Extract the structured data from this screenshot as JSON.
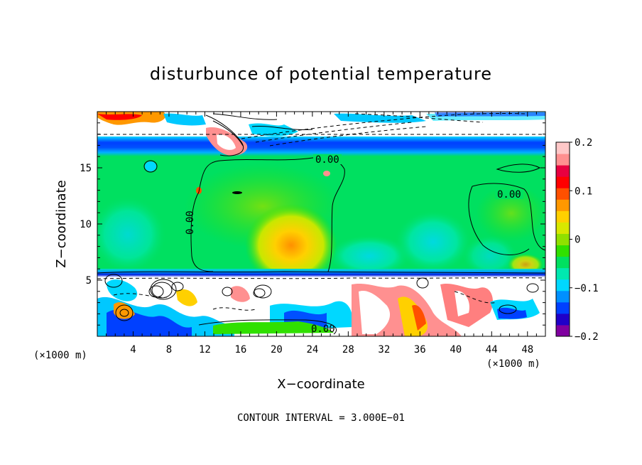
{
  "chart_data": {
    "type": "heatmap",
    "title": "disturbunce of potential temperature",
    "xlabel": "X−coordinate",
    "ylabel": "Z−coordinate",
    "x_unit": "(×1000 m)",
    "y_unit": "(×1000 m)",
    "xlim": [
      0,
      50
    ],
    "ylim": [
      0,
      20
    ],
    "x_ticks": [
      4,
      8,
      12,
      16,
      20,
      24,
      28,
      32,
      36,
      40,
      44,
      48
    ],
    "y_ticks": [
      5,
      10,
      15
    ],
    "colorbar": {
      "range": [
        -0.2,
        0.2
      ],
      "tick_values": [
        0.2,
        0.1,
        0,
        -0.1,
        -0.2
      ],
      "tick_labels": [
        "0.2",
        "0.1",
        "0",
        "−0.1",
        "−0.2"
      ],
      "colors": [
        "#8000a0",
        "#2000c8",
        "#0040ff",
        "#0090ff",
        "#00d8ff",
        "#00e8b0",
        "#00e060",
        "#30e000",
        "#90e000",
        "#d8e800",
        "#ffd000",
        "#ff9800",
        "#ff5000",
        "#ff0000",
        "#e80040",
        "#ff9090",
        "#ffc8c8"
      ]
    },
    "contour_labels": [
      {
        "text": "0.00",
        "x": 24.8,
        "z": 15.5
      },
      {
        "text": "0.00",
        "x": 46.0,
        "z": 12.4
      },
      {
        "text": "0.00",
        "x": 10.0,
        "z": 10.1,
        "rotation": -90
      },
      {
        "text": "0.00",
        "x": 25.0,
        "z": 0.7
      }
    ],
    "contour_interval_note": "CONTOUR INTERVAL = 3.000E−01",
    "grid": false
  }
}
